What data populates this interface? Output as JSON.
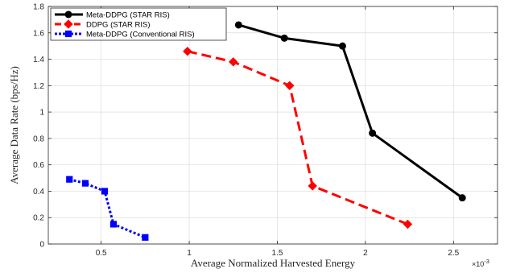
{
  "chart_data": {
    "type": "line",
    "xlabel": "Average Normalized Harvested Energy",
    "ylabel": "Average Data Rate (bps/Hz)",
    "x_multiplier_label": "×10",
    "x_multiplier_exp": "-3",
    "xlim": [
      0.2,
      2.75
    ],
    "ylim": [
      0,
      1.8
    ],
    "xticks": [
      0.5,
      1,
      1.5,
      2,
      2.5
    ],
    "xtick_labels": [
      "0.5",
      "1",
      "1.5",
      "2",
      "2.5"
    ],
    "yticks": [
      0,
      0.2,
      0.4,
      0.6,
      0.8,
      1,
      1.2,
      1.4,
      1.6,
      1.8
    ],
    "ytick_labels": [
      "0",
      "0.2",
      "0.4",
      "0.6",
      "0.8",
      "1",
      "1.2",
      "1.4",
      "1.6",
      "1.8"
    ],
    "grid": true,
    "legend_position": "top-left",
    "series": [
      {
        "name": "Meta-DDPG (STAR RIS)",
        "color": "#000000",
        "line_style": "solid",
        "marker": "circle",
        "x": [
          1.28,
          1.54,
          1.87,
          2.04,
          2.55
        ],
        "y": [
          1.66,
          1.56,
          1.5,
          0.84,
          0.35
        ]
      },
      {
        "name": "DDPG (STAR RIS)",
        "color": "#ff0000",
        "line_style": "dashed",
        "marker": "diamond",
        "x": [
          0.99,
          1.25,
          1.57,
          1.7,
          2.24
        ],
        "y": [
          1.46,
          1.38,
          1.2,
          0.44,
          0.15
        ]
      },
      {
        "name": "Meta-DDPG (Conventional RIS)",
        "color": "#0000ff",
        "line_style": "dotted",
        "marker": "square",
        "x": [
          0.32,
          0.41,
          0.52,
          0.57,
          0.75
        ],
        "y": [
          0.49,
          0.46,
          0.4,
          0.15,
          0.05
        ]
      }
    ]
  }
}
